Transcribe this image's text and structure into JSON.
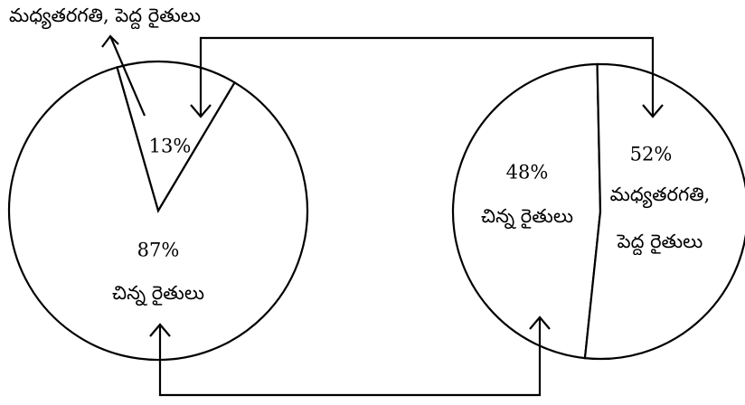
{
  "chart_data": [
    {
      "type": "pie",
      "categories": [
        [
          "చిన్న రైతులు"
        ],
        [
          "మధ్యతరగతి, పెద్ద రైతులు"
        ]
      ],
      "values": [
        87,
        13
      ],
      "value_labels": [
        "87%",
        "13%"
      ]
    },
    {
      "type": "pie",
      "categories": [
        [
          "చిన్న రైతులు"
        ],
        [
          "మధ్యతరగతి,",
          "పెద్ద రైతులు"
        ]
      ],
      "values": [
        48,
        52
      ],
      "value_labels": [
        "48%",
        "52%"
      ]
    }
  ]
}
